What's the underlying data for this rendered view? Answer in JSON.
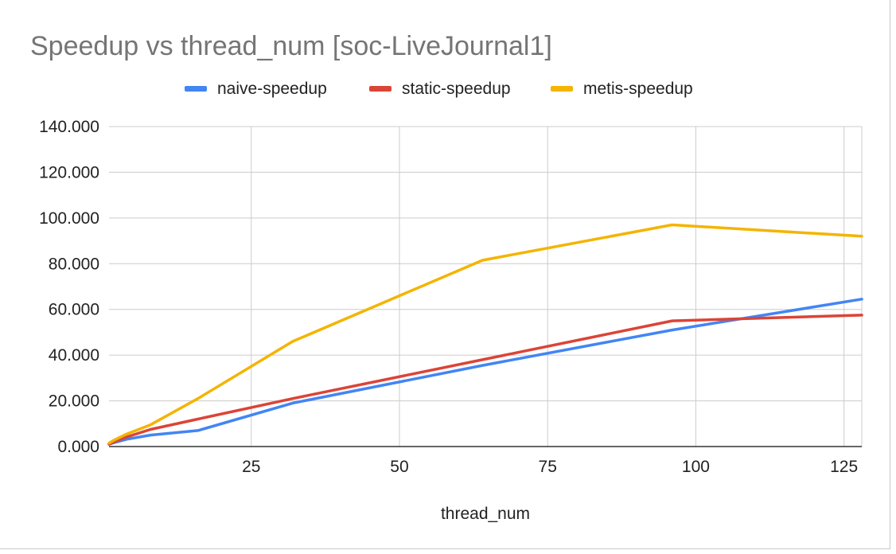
{
  "chart_data": {
    "type": "line",
    "title": "Speedup vs thread_num [soc-LiveJournal1]",
    "xlabel": "thread_num",
    "ylabel": "",
    "xlim": [
      1,
      128
    ],
    "ylim": [
      0,
      140
    ],
    "x_ticks": [
      25,
      50,
      75,
      100,
      125
    ],
    "x_tick_labels": [
      "25",
      "50",
      "75",
      "100",
      "125"
    ],
    "y_ticks": [
      0,
      20,
      40,
      60,
      80,
      100,
      120,
      140
    ],
    "y_tick_labels": [
      "0.000",
      "20.000",
      "40.000",
      "60.000",
      "80.000",
      "100.000",
      "120.000",
      "140.000"
    ],
    "grid": true,
    "legend_position": "top",
    "series": [
      {
        "name": "naive-speedup",
        "color": "#4285f4",
        "x": [
          1,
          2,
          4,
          8,
          16,
          32,
          64,
          96,
          128
        ],
        "y": [
          1.0,
          1.8,
          3.2,
          5.0,
          7.0,
          19.0,
          35.5,
          51.0,
          64.5
        ]
      },
      {
        "name": "static-speedup",
        "color": "#db4437",
        "x": [
          1,
          2,
          4,
          8,
          16,
          32,
          64,
          96,
          128
        ],
        "y": [
          1.0,
          2.2,
          4.2,
          7.5,
          12.0,
          21.0,
          38.0,
          55.0,
          57.5
        ]
      },
      {
        "name": "metis-speedup",
        "color": "#f4b400",
        "x": [
          1,
          2,
          4,
          8,
          16,
          32,
          64,
          96,
          128
        ],
        "y": [
          1.5,
          3.0,
          5.5,
          9.5,
          21.0,
          46.0,
          81.5,
          97.0,
          92.0
        ]
      }
    ]
  }
}
